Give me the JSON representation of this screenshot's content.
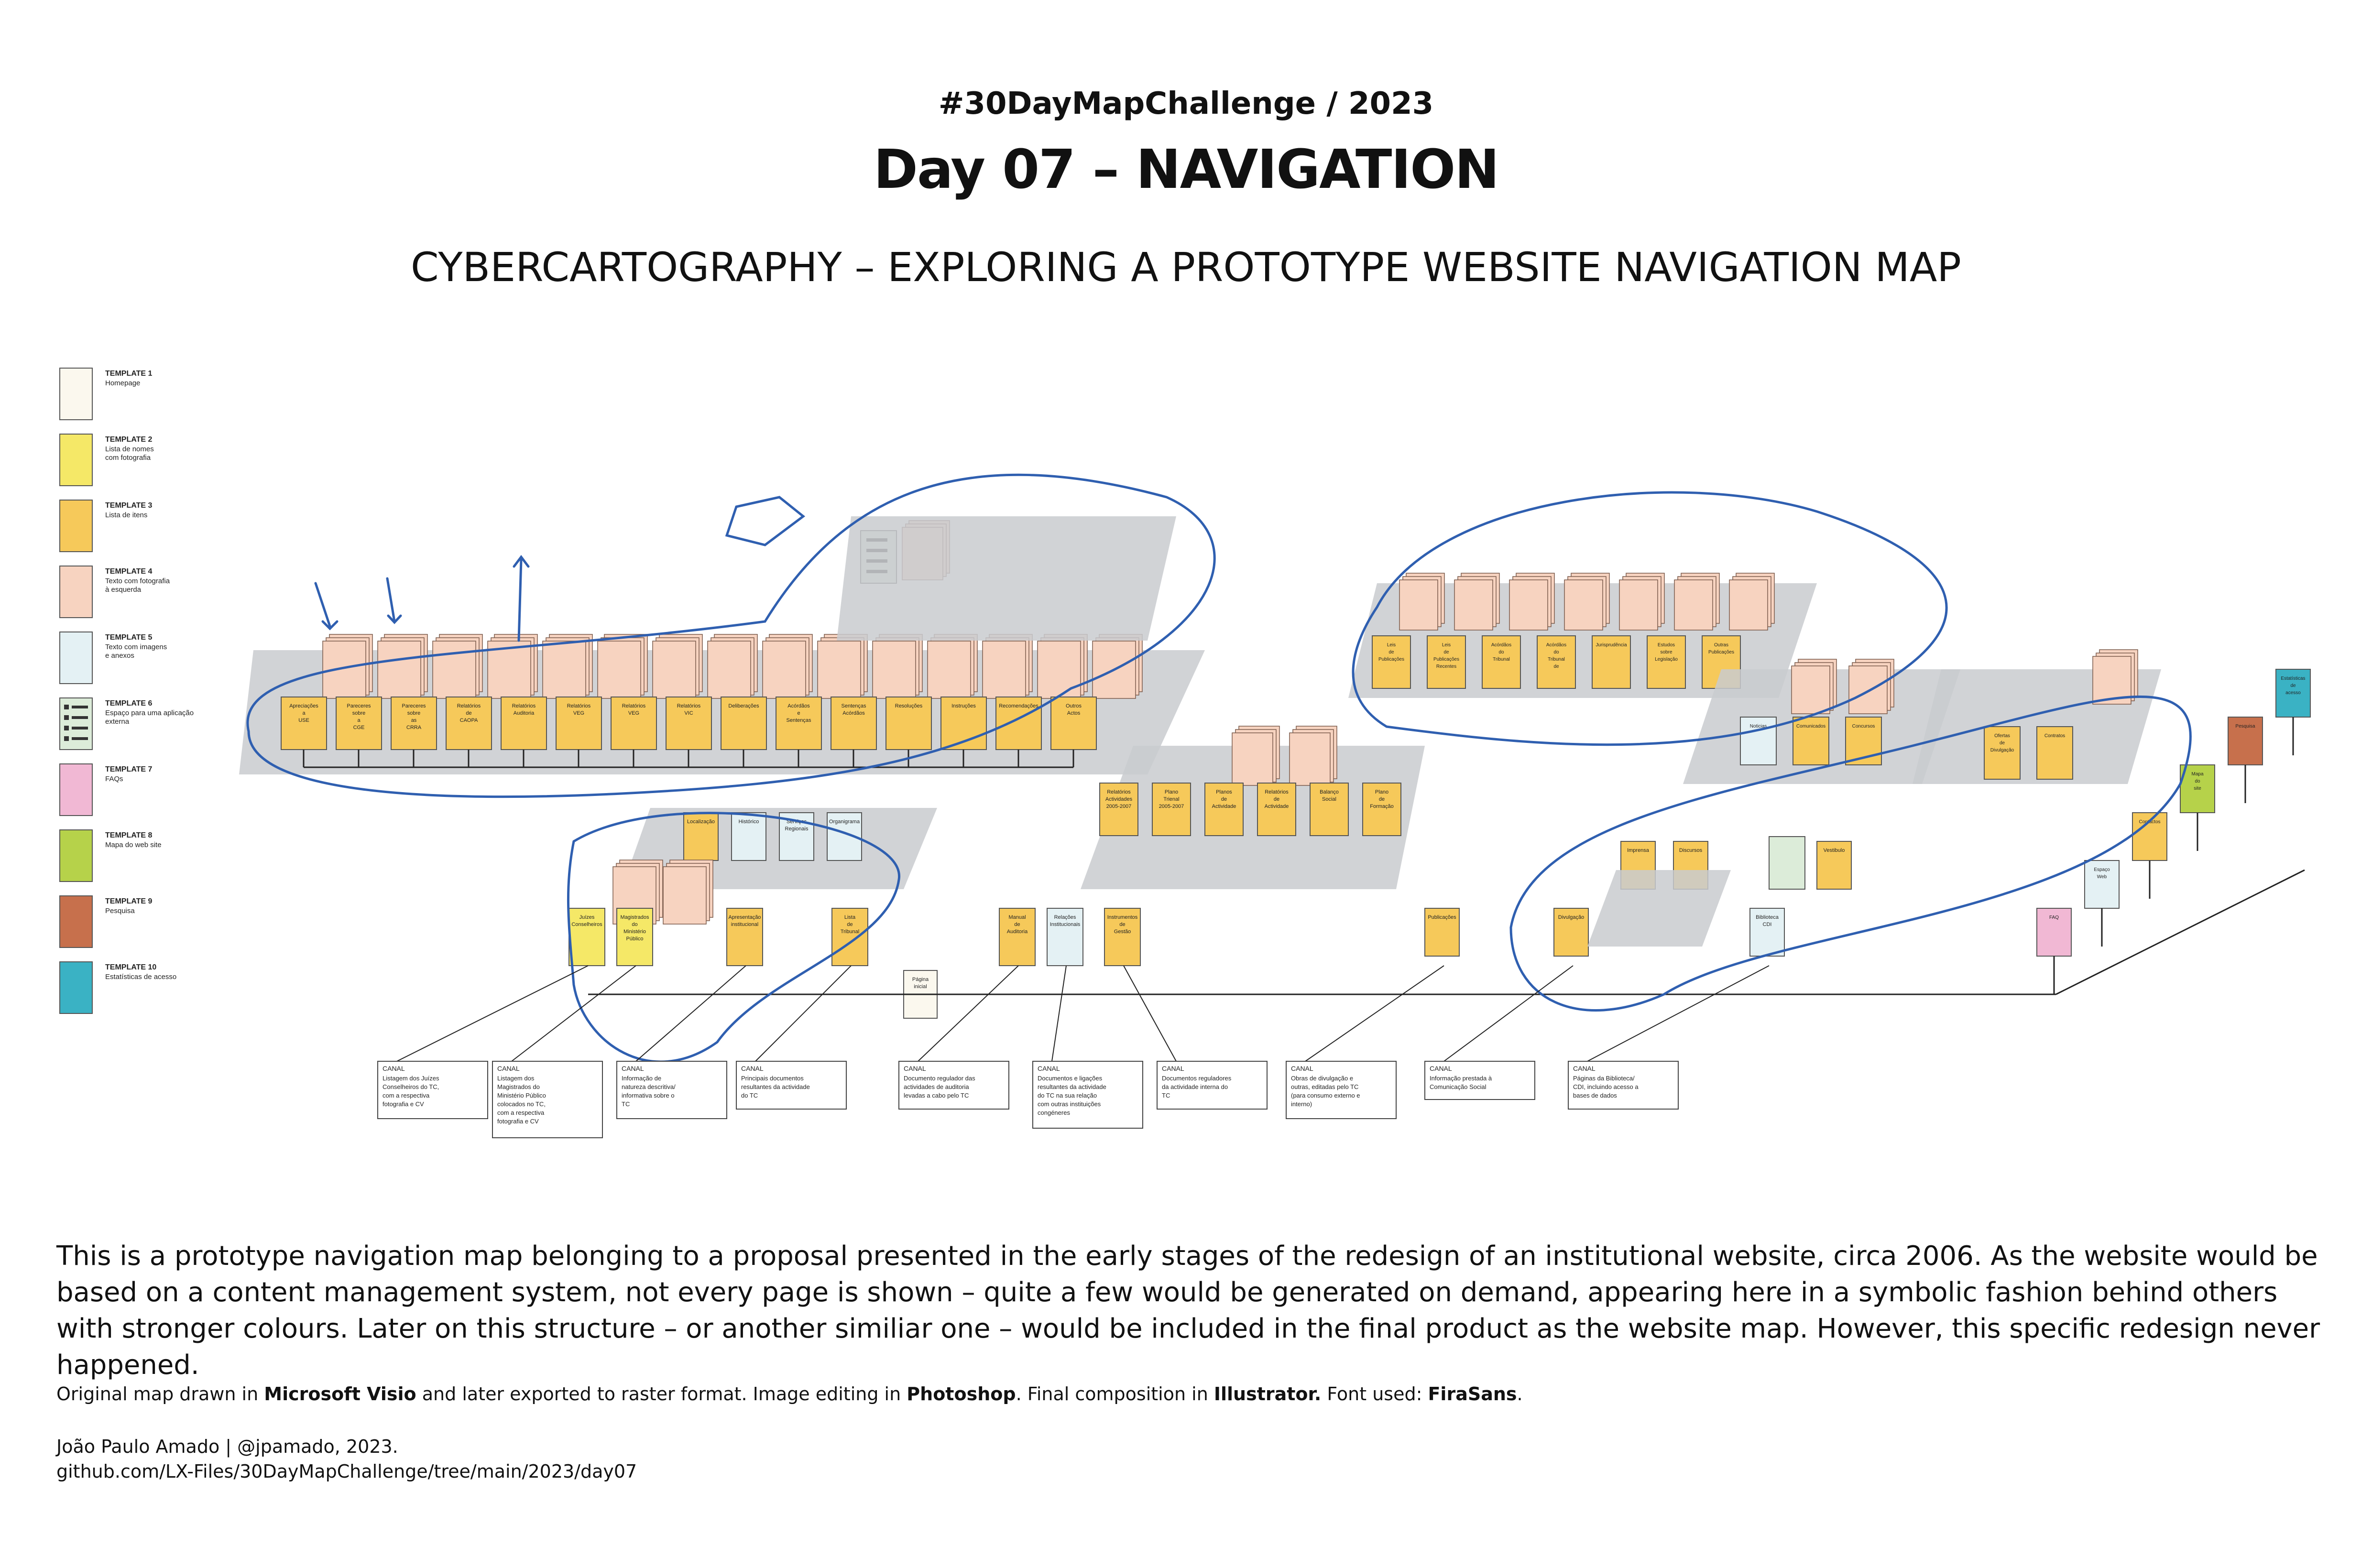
{
  "header": {
    "challenge": "#30DayMapChallenge / 2023",
    "title": "Day 07 – NAVIGATION",
    "subtitle": "CYBERCARTOGRAPHY – EXPLORING A PROTOTYPE WEBSITE NAVIGATION MAP"
  },
  "legend": [
    {
      "name": "TEMPLATE 1",
      "desc": [
        "Homepage"
      ],
      "color": "#fbf8ee"
    },
    {
      "name": "TEMPLATE 2",
      "desc": [
        "Lista de nomes",
        "com fotografia"
      ],
      "color": "#f5e867"
    },
    {
      "name": "TEMPLATE 3",
      "desc": [
        "Lista de itens"
      ],
      "color": "#f6c95a"
    },
    {
      "name": "TEMPLATE 4",
      "desc": [
        "Texto com fotografia",
        "à esquerda"
      ],
      "color": "#f7d3c0"
    },
    {
      "name": "TEMPLATE 5",
      "desc": [
        "Texto com imagens",
        "e anexos"
      ],
      "color": "#e4f1f4"
    },
    {
      "name": "TEMPLATE 6",
      "desc": [
        "Espaço para uma aplicação",
        "externa"
      ],
      "color": "#dcecd9"
    },
    {
      "name": "TEMPLATE 7",
      "desc": [
        "FAQs"
      ],
      "color": "#f1b8d4"
    },
    {
      "name": "TEMPLATE 8",
      "desc": [
        "Mapa do web site"
      ],
      "color": "#b6d24a"
    },
    {
      "name": "TEMPLATE 9",
      "desc": [
        "Pesquisa"
      ],
      "color": "#c7704c"
    },
    {
      "name": "TEMPLATE 10",
      "desc": [
        "Estatísticas de acesso"
      ],
      "color": "#3ab2c4"
    }
  ],
  "diagram": {
    "accent_ink": "#2f5fb0",
    "row1_labels": [
      "Apreciações a USE",
      "Pareceres sobre a CGE",
      "Pareceres sobre as CRRA",
      "Relatórios de CAOPA",
      "Relatórios Auditoria",
      "Relatórios VEG",
      "Relatórios VEG",
      "Relatórios VIC",
      "Deliberações",
      "Acórdãos e Sentenças",
      "Sentenças Acórdãos",
      "Resoluções",
      "Instruções",
      "Recomendações",
      "Outros Actos"
    ],
    "row2_labels": [
      "Localização",
      "Histórico",
      "Serviços Regionais",
      "Organigrama"
    ],
    "row3_labels": [
      "Juízes Conselheiros",
      "Magistrados do Ministério Público",
      "Apresentação institucional",
      "Lista de Tribunal",
      "Manual de Auditoria",
      "Relações Institucionais",
      "Instrumentos de Gestão"
    ],
    "homepage_label": "Página inicial",
    "center_labels": [
      "Relatórios Actividades 2005-2007",
      "Plano Trienal 2005-2007",
      "Planos de Actividade",
      "Relatórios de Actividade",
      "Balanço Social",
      "Plano de Formação"
    ],
    "top_right_labels": [
      "Leis de Publicações",
      "Leis de Publicações Recentes",
      "Acórdãos do Tribunal",
      "Acórdãos do Tribunal de Contas",
      "Jurisprudência",
      "Estudos sobre Legislação",
      "Outras Publicações"
    ],
    "mid_labels": [
      "Publicações",
      "Divulgação",
      "Imprensa",
      "Discursos",
      "Comunicados",
      "Concursos",
      "Noticias",
      "Ofertas de Divulgação",
      "Contratos",
      "Biblioteca CDI"
    ],
    "util_labels": [
      "FAQ",
      "Espaço Web",
      "Contactos",
      "Mapa do site",
      "Pesquisa",
      "Estatísticas de acesso"
    ],
    "canal_notes": [
      {
        "head": "CANAL",
        "text": [
          "Listagem dos Juízes",
          "Conselheiros do TC,",
          "com a respectiva",
          "fotografia e CV"
        ]
      },
      {
        "head": "CANAL",
        "text": [
          "Listagem dos",
          "Magistrados do",
          "Ministério Público",
          "colocados no TC,",
          "com a respectiva",
          "fotografia e CV"
        ]
      },
      {
        "head": "CANAL",
        "text": [
          "Informação de",
          "natureza descritiva/",
          "informativa sobre o",
          "TC"
        ]
      },
      {
        "head": "CANAL",
        "text": [
          "Principais documentos",
          "resultantes da actividade",
          "do TC"
        ]
      },
      {
        "head": "CANAL",
        "text": [
          "Documento regulador das",
          "actividades de auditoria",
          "levadas a cabo pelo TC"
        ]
      },
      {
        "head": "CANAL",
        "text": [
          "Documentos e ligações",
          "resultantes da actividade",
          "do TC na sua relação",
          "com outras instituições",
          "congéneres"
        ]
      },
      {
        "head": "CANAL",
        "text": [
          "Documentos reguladores",
          "da actividade interna do",
          "TC"
        ]
      },
      {
        "head": "CANAL",
        "text": [
          "Obras de divulgação e",
          "outras, editadas pelo TC",
          "(para consumo externo e",
          "interno)"
        ]
      },
      {
        "head": "CANAL",
        "text": [
          "Informação prestada à",
          "Comunicação Social"
        ]
      },
      {
        "head": "CANAL",
        "text": [
          "Páginas da Biblioteca/",
          "CDI, incluindo acesso a",
          "bases de dados"
        ]
      }
    ]
  },
  "description": "This is a prototype navigation map belonging to a proposal presented in the early stages of the redesign of an institutional website, circa 2006. As the website would be based on a content management system, not every page is shown – quite a few would be generated on demand, appearing here in a symbolic fashion behind others with stronger colours. Later on this structure – or another similiar one – would be included in the final product as the website map. However, this specific redesign never happened.",
  "credits": {
    "t1": "Original map drawn in ",
    "visio": "Microsoft Visio",
    "t2": " and later exported to raster format. Image editing in ",
    "photoshop": "Photoshop",
    "t3": ". Final composition in ",
    "illustrator": "Illustrator.",
    "t4": " Font used: ",
    "font": "FiraSans",
    "t5": "."
  },
  "author": {
    "line1": "João Paulo Amado | @jpamado, 2023.",
    "line2": "github.com/LX-Files/30DayMapChallenge/tree/main/2023/day07"
  }
}
